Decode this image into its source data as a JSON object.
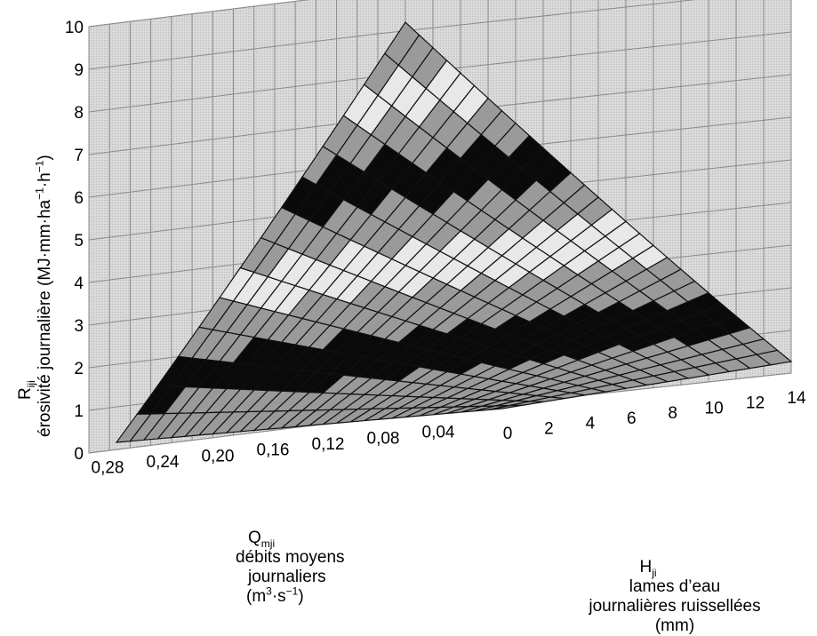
{
  "chart_data": {
    "type": "surface3d",
    "z_axis": {
      "symbol": "R",
      "symbol_sub": "iji",
      "label": "érosivité journalière",
      "unit_open": "(MJ·mm·ha",
      "unit_sup1": "−1",
      "unit_mid": "·h",
      "unit_sup2": "−1",
      "unit_close": ")",
      "ticks": [
        "0",
        "1",
        "2",
        "3",
        "4",
        "5",
        "6",
        "7",
        "8",
        "9",
        "10"
      ],
      "range": [
        0,
        10
      ]
    },
    "q_axis": {
      "symbol": "Q",
      "symbol_sub": "mji",
      "label_line1": "débits moyens",
      "label_line2": "journaliers",
      "unit_open": "(m",
      "unit_sup1": "3",
      "unit_mid": "·s",
      "unit_sup2": "−1",
      "unit_close": ")",
      "ticks": [
        "0,28",
        "0,24",
        "0,20",
        "0,16",
        "0,12",
        "0,08",
        "0,04"
      ],
      "range": [
        0,
        0.3
      ]
    },
    "h_axis": {
      "symbol": "H",
      "symbol_sub": "ji",
      "label_line1": "lames d’eau",
      "label_line2": "journalières ruissellées",
      "unit": "(mm)",
      "ticks": [
        "0",
        "2",
        "4",
        "6",
        "8",
        "10",
        "12",
        "14"
      ],
      "range": [
        0,
        14
      ]
    },
    "surface": {
      "description_levels": [
        0,
        1,
        2,
        3,
        4,
        5,
        6,
        7,
        8,
        9
      ],
      "corner_values": {
        "h0_q0": 0,
        "h14_q0": 0.3,
        "h0_q028": 0.2,
        "h14_q028": 9.2
      }
    },
    "grid": true,
    "colors": {
      "wall": "#d6d6d6",
      "grid": "#8a8a8a",
      "band_dark": "#0a0a0a",
      "band_grey": "#9a9a9a",
      "band_light": "#e8e8e8"
    }
  }
}
